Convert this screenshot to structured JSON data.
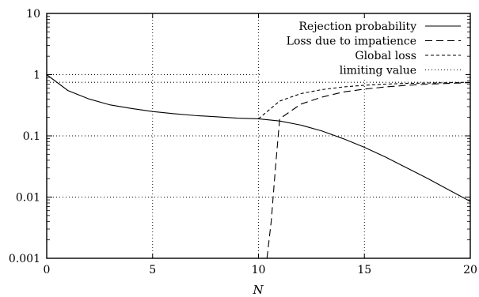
{
  "chart_data": {
    "type": "line",
    "title": "",
    "xlabel": "N",
    "ylabel": "",
    "xlim": [
      0,
      20
    ],
    "ylim": [
      0.001,
      10
    ],
    "yscale": "log",
    "grid": true,
    "legend_position": "top-right",
    "xticks": [
      0,
      5,
      10,
      15,
      20
    ],
    "xtick_labels": [
      "0",
      "5",
      "10",
      "15",
      "20"
    ],
    "yticks": [
      0.001,
      0.01,
      0.1,
      1,
      10
    ],
    "ytick_labels": [
      "0.001",
      "0.01",
      "0.1",
      "1",
      "10"
    ],
    "series": [
      {
        "name": "Rejection probability",
        "style": "solid",
        "x": [
          0,
          1,
          2,
          3,
          4,
          5,
          6,
          7,
          8,
          9,
          10,
          11,
          12,
          13,
          14,
          15,
          16,
          17,
          18,
          19,
          20
        ],
        "y": [
          1.0,
          0.55,
          0.4,
          0.32,
          0.28,
          0.25,
          0.23,
          0.215,
          0.205,
          0.195,
          0.19,
          0.175,
          0.15,
          0.12,
          0.09,
          0.065,
          0.045,
          0.03,
          0.02,
          0.013,
          0.0085
        ]
      },
      {
        "name": "Loss due to impatience",
        "style": "dashed",
        "x": [
          10.4,
          10.6,
          10.8,
          11,
          12,
          13,
          14,
          15,
          16,
          17,
          18,
          19,
          20
        ],
        "y": [
          0.001,
          0.004,
          0.03,
          0.19,
          0.33,
          0.43,
          0.52,
          0.58,
          0.63,
          0.67,
          0.7,
          0.72,
          0.74
        ]
      },
      {
        "name": "Global loss",
        "style": "short-dashed",
        "x": [
          10,
          11,
          12,
          13,
          14,
          15,
          16,
          17,
          18,
          19,
          20
        ],
        "y": [
          0.19,
          0.37,
          0.49,
          0.57,
          0.63,
          0.67,
          0.7,
          0.72,
          0.73,
          0.74,
          0.75
        ]
      },
      {
        "name": "limiting value",
        "style": "dotted",
        "x": [
          0,
          20
        ],
        "y": [
          0.75,
          0.75
        ]
      }
    ]
  }
}
